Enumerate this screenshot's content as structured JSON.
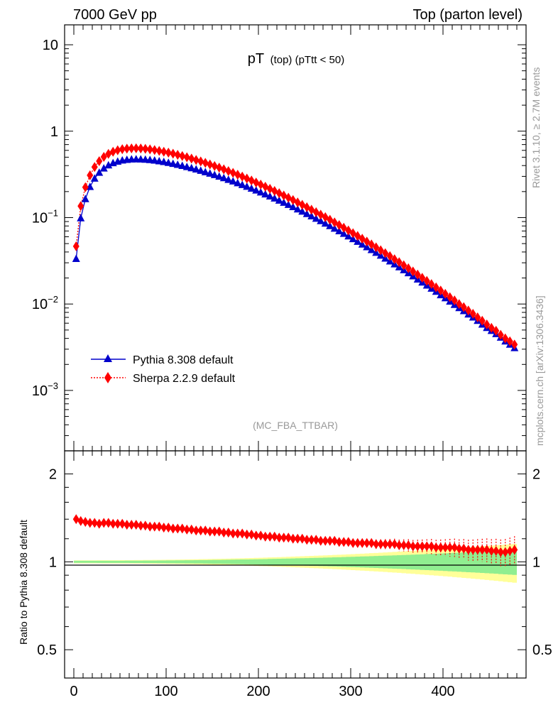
{
  "header": {
    "left": "7000 GeV pp",
    "right": "Top (parton level)"
  },
  "plot_title": {
    "main": "pT",
    "small": "(top) (pTtt < 50)"
  },
  "analysis_label": "(MC_FBA_TTBAR)",
  "side_labels": {
    "upper": "Rivet 3.1.10, ≥ 2.7M events",
    "lower": "mcplots.cern.ch [arXiv:1306.3436]"
  },
  "ratio_ylabel": "Ratio to Pythia 8.308 default",
  "legend": [
    {
      "label": "Pythia 8.308 default",
      "color": "#0000cc",
      "marker": "triangle",
      "style": "solid"
    },
    {
      "label": "Sherpa 2.2.9 default",
      "color": "#ff0000",
      "marker": "diamond",
      "style": "dotted"
    }
  ],
  "main_ticks": {
    "y": [
      {
        "value": 10,
        "label": "10"
      },
      {
        "value": 1,
        "label": "1"
      },
      {
        "value": 0.1,
        "base": "10",
        "exp": "−1"
      },
      {
        "value": 0.01,
        "base": "10",
        "exp": "−2"
      },
      {
        "value": 0.001,
        "base": "10",
        "exp": "−3"
      }
    ]
  },
  "ratio_ticks": {
    "y": [
      {
        "value": 2,
        "label": "2"
      },
      {
        "value": 1,
        "label": "1"
      },
      {
        "value": 0.5,
        "label": "0.5"
      }
    ],
    "x": [
      {
        "value": 0,
        "label": "0"
      },
      {
        "value": 100,
        "label": "100"
      },
      {
        "value": 200,
        "label": "200"
      },
      {
        "value": 300,
        "label": "300"
      },
      {
        "value": 400,
        "label": "400"
      }
    ]
  },
  "chart_data": {
    "type": "scatter",
    "xlim": [
      -10,
      490
    ],
    "main_ylim": [
      0.0002,
      17
    ],
    "main_yscale": "log",
    "ratio_ylim": [
      0.4,
      2.4
    ],
    "ratio_yscale": "log",
    "x": [
      2.5,
      7.5,
      12.5,
      17.5,
      22.5,
      27.5,
      32.5,
      37.5,
      42.5,
      47.5,
      52.5,
      57.5,
      62.5,
      67.5,
      72.5,
      77.5,
      82.5,
      87.5,
      92.5,
      97.5,
      102.5,
      107.5,
      112.5,
      117.5,
      122.5,
      127.5,
      132.5,
      137.5,
      142.5,
      147.5,
      152.5,
      157.5,
      162.5,
      167.5,
      172.5,
      177.5,
      182.5,
      187.5,
      192.5,
      197.5,
      202.5,
      207.5,
      212.5,
      217.5,
      222.5,
      227.5,
      232.5,
      237.5,
      242.5,
      247.5,
      252.5,
      257.5,
      262.5,
      267.5,
      272.5,
      277.5,
      282.5,
      287.5,
      292.5,
      297.5,
      302.5,
      307.5,
      312.5,
      317.5,
      322.5,
      327.5,
      332.5,
      337.5,
      342.5,
      347.5,
      352.5,
      357.5,
      362.5,
      367.5,
      372.5,
      377.5,
      382.5,
      387.5,
      392.5,
      397.5,
      402.5,
      407.5,
      412.5,
      417.5,
      422.5,
      427.5,
      432.5,
      437.5,
      442.5,
      447.5,
      452.5,
      457.5,
      462.5,
      467.5,
      472.5,
      477.5
    ],
    "series": [
      {
        "name": "Pythia 8.308 default",
        "values": [
          0.0334,
          0.0985,
          0.1642,
          0.2272,
          0.2836,
          0.3318,
          0.3714,
          0.4031,
          0.4277,
          0.4461,
          0.4592,
          0.4677,
          0.4724,
          0.474,
          0.4729,
          0.4697,
          0.4646,
          0.4579,
          0.4499,
          0.4409,
          0.431,
          0.4205,
          0.4094,
          0.3979,
          0.386,
          0.3739,
          0.3615,
          0.3491,
          0.3365,
          0.324,
          0.3115,
          0.2991,
          0.2868,
          0.2746,
          0.2627,
          0.2509,
          0.2394,
          0.2282,
          0.2172,
          0.2065,
          0.1961,
          0.186,
          0.1763,
          0.1669,
          0.1578,
          0.1491,
          0.1407,
          0.1327,
          0.125,
          0.1176,
          0.1105,
          0.1038,
          0.0974,
          0.0913,
          0.0855,
          0.08,
          0.0748,
          0.0698,
          0.0652,
          0.0608,
          0.0566,
          0.0527,
          0.049,
          0.0456,
          0.0423,
          0.0393,
          0.0364,
          0.0337,
          0.0312,
          0.0289,
          0.0267,
          0.0247,
          0.0228,
          0.021,
          0.0193,
          0.0178,
          0.0164,
          0.0151,
          0.0139,
          0.0127,
          0.0117,
          0.0107,
          0.0098,
          0.009,
          0.0083,
          0.0076,
          0.007,
          0.0064,
          0.0058,
          0.0053,
          0.0049,
          0.0045,
          0.0041,
          0.0037,
          0.0034,
          0.0031
        ]
      },
      {
        "name": "Sherpa 2.2.9 default",
        "values": [
          0.0466,
          0.1358,
          0.2243,
          0.3088,
          0.385,
          0.4493,
          0.5034,
          0.5462,
          0.5785,
          0.6021,
          0.6183,
          0.6282,
          0.6329,
          0.6335,
          0.6303,
          0.6242,
          0.6155,
          0.6047,
          0.5923,
          0.5786,
          0.5638,
          0.5483,
          0.5321,
          0.5156,
          0.4987,
          0.4816,
          0.4643,
          0.447,
          0.4297,
          0.4124,
          0.3954,
          0.3784,
          0.3618,
          0.3454,
          0.3294,
          0.3136,
          0.2982,
          0.2833,
          0.2688,
          0.2546,
          0.2409,
          0.2278,
          0.2152,
          0.203,
          0.1914,
          0.1803,
          0.1696,
          0.1595,
          0.1499,
          0.1406,
          0.1318,
          0.1235,
          0.1156,
          0.1082,
          0.1011,
          0.0944,
          0.088,
          0.082,
          0.0764,
          0.071,
          0.066,
          0.0613,
          0.0569,
          0.0528,
          0.0489,
          0.0453,
          0.0419,
          0.0387,
          0.0358,
          0.033,
          0.0305,
          0.0281,
          0.0259,
          0.0238,
          0.0219,
          0.0201,
          0.0185,
          0.017,
          0.0156,
          0.0143,
          0.0131,
          0.012,
          0.011,
          0.01,
          0.0092,
          0.0084,
          0.0077,
          0.007,
          0.0064,
          0.0058,
          0.0053,
          0.0049,
          0.0044,
          0.004,
          0.0037,
          0.0034
        ]
      }
    ],
    "ratio": {
      "reference": 1,
      "values": [
        1.4,
        1.38,
        1.37,
        1.36,
        1.36,
        1.35,
        1.36,
        1.36,
        1.35,
        1.35,
        1.35,
        1.34,
        1.34,
        1.34,
        1.33,
        1.33,
        1.32,
        1.32,
        1.32,
        1.31,
        1.31,
        1.3,
        1.3,
        1.3,
        1.29,
        1.29,
        1.28,
        1.28,
        1.28,
        1.27,
        1.27,
        1.27,
        1.26,
        1.26,
        1.25,
        1.25,
        1.25,
        1.24,
        1.24,
        1.23,
        1.23,
        1.22,
        1.22,
        1.22,
        1.21,
        1.21,
        1.21,
        1.2,
        1.2,
        1.2,
        1.19,
        1.19,
        1.19,
        1.18,
        1.18,
        1.18,
        1.18,
        1.17,
        1.17,
        1.17,
        1.16,
        1.16,
        1.16,
        1.16,
        1.16,
        1.15,
        1.15,
        1.15,
        1.15,
        1.15,
        1.14,
        1.14,
        1.14,
        1.13,
        1.13,
        1.13,
        1.13,
        1.13,
        1.12,
        1.12,
        1.12,
        1.12,
        1.12,
        1.11,
        1.11,
        1.1,
        1.1,
        1.1,
        1.1,
        1.1,
        1.09,
        1.09,
        1.08,
        1.08,
        1.09,
        1.1
      ]
    }
  }
}
